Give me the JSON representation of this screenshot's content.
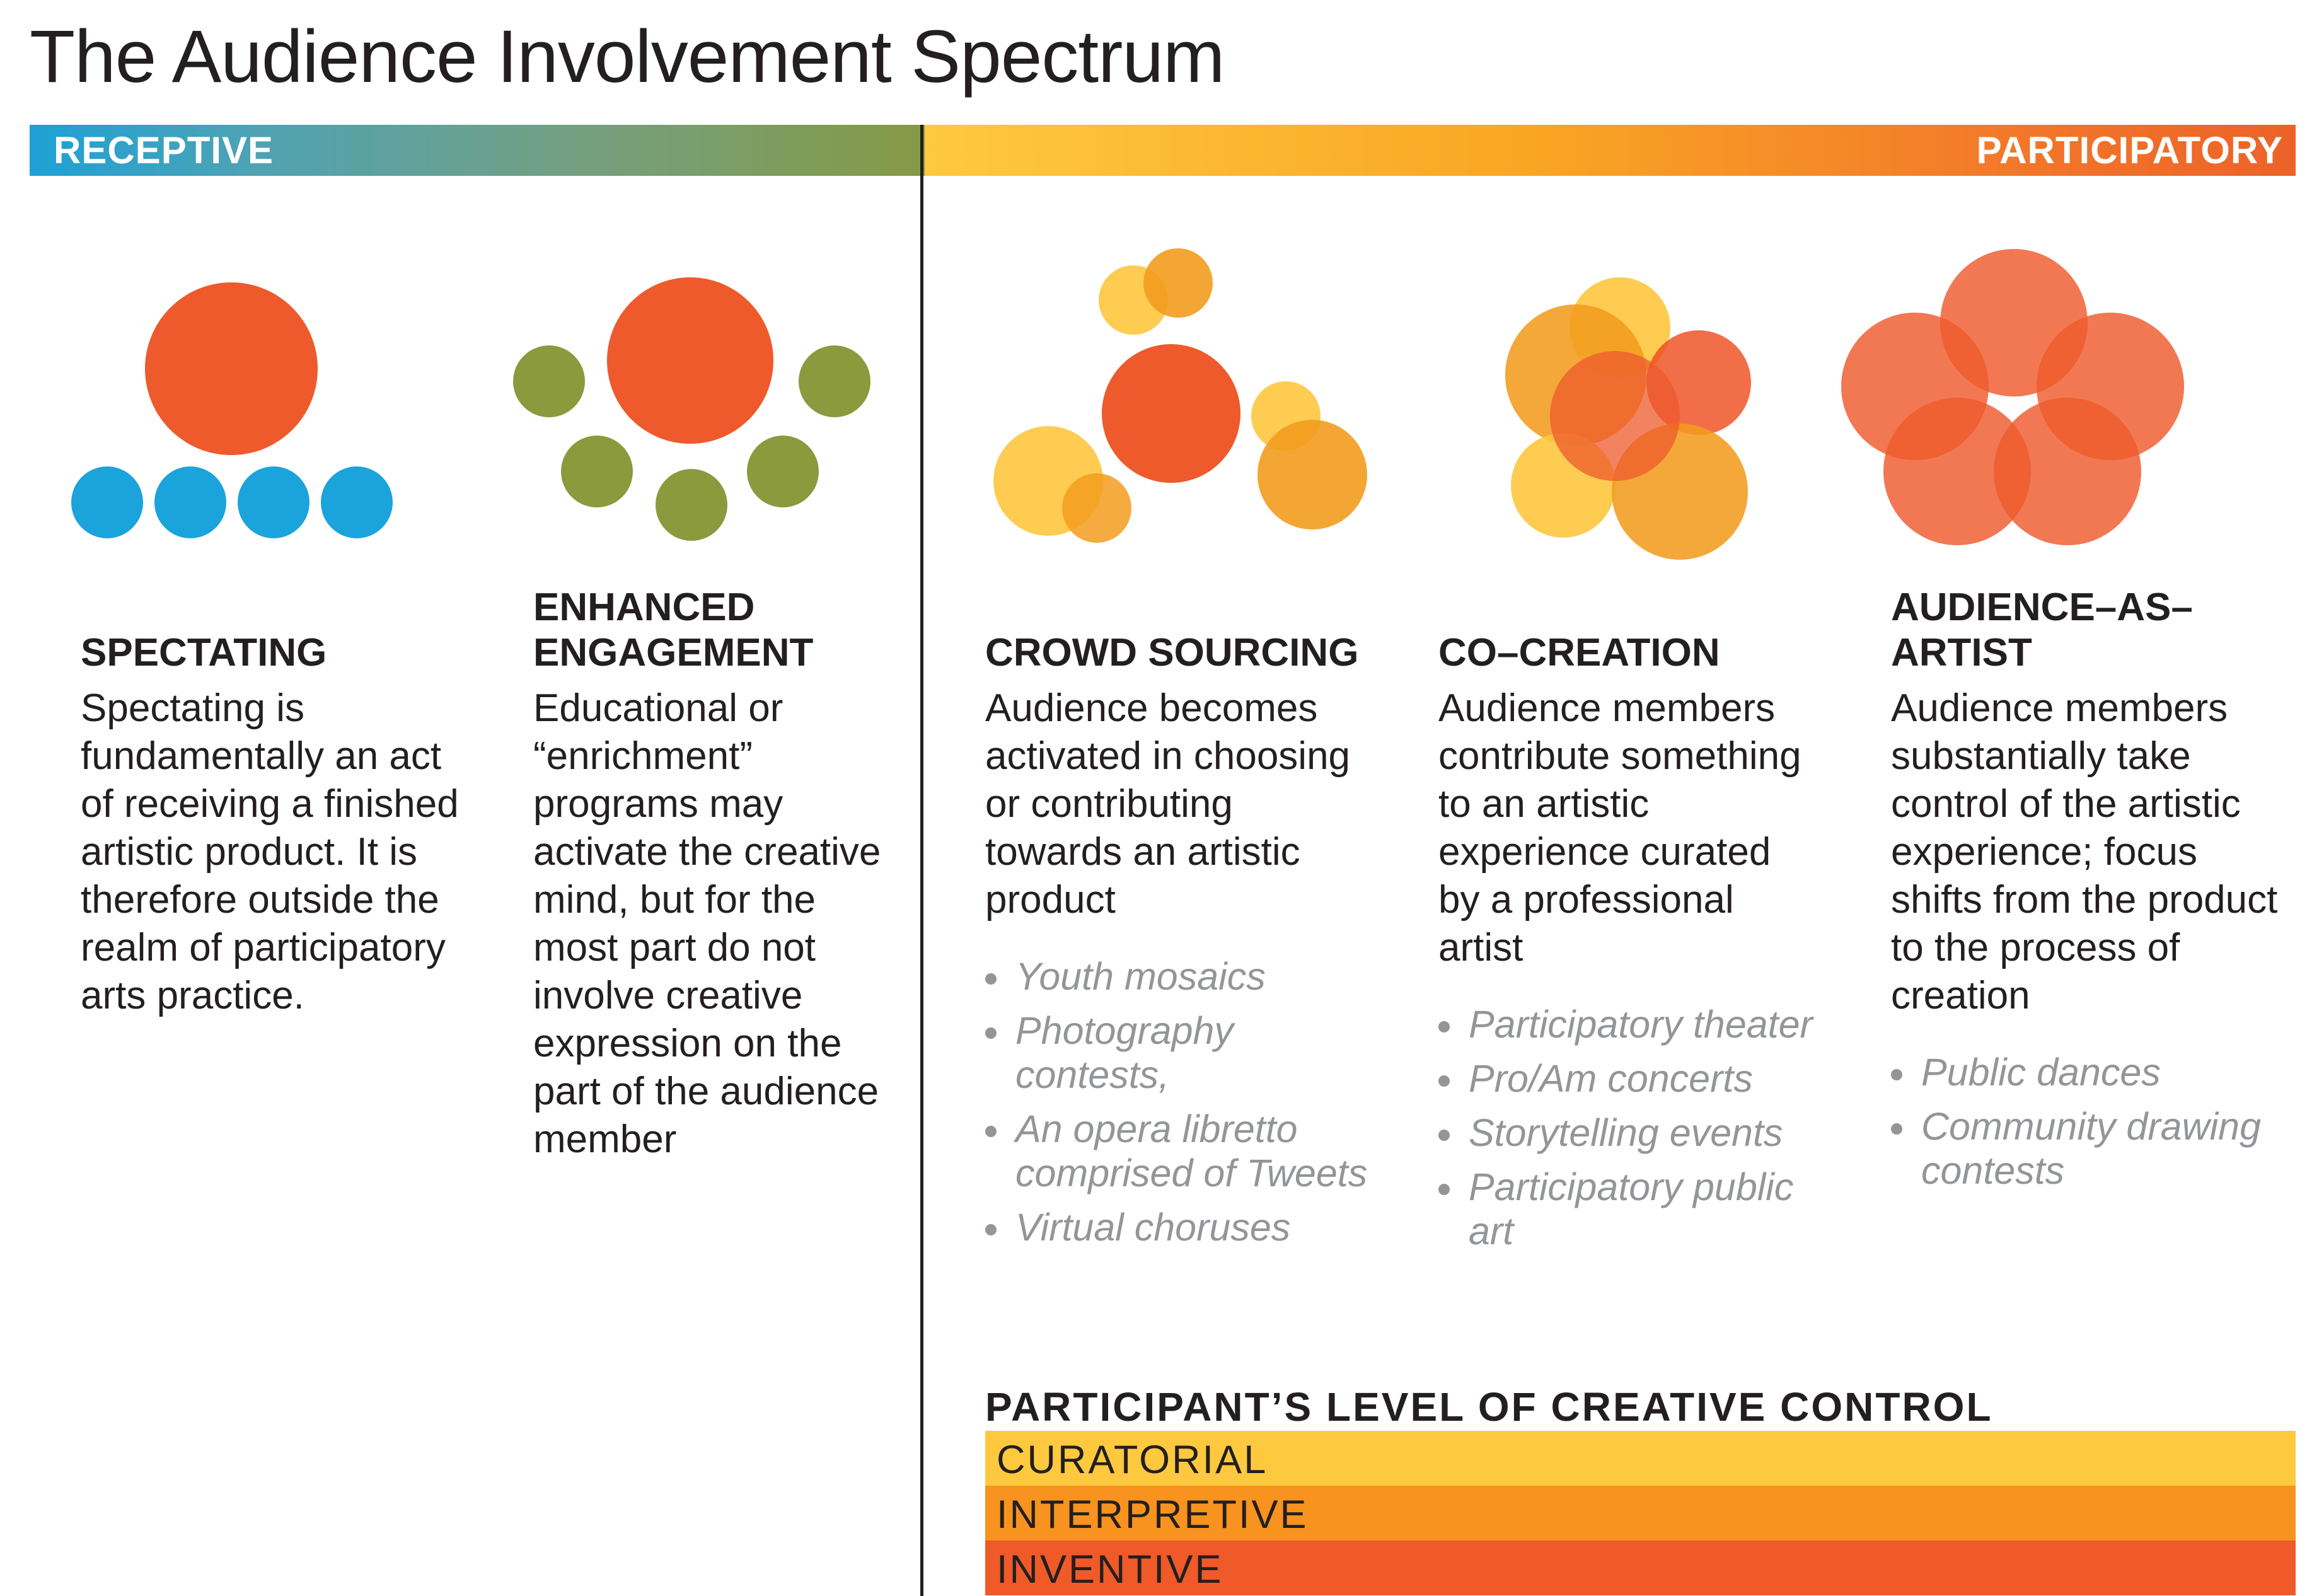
{
  "title": "The Audience Involvement Spectrum",
  "spectrum": {
    "left_label": "RECEPTIVE",
    "right_label": "PARTICIPATORY"
  },
  "columns": [
    {
      "heading": "SPECTATING",
      "description": "Spectating is fundamentally an act of receiving a finished artistic product. It is therefore outside the realm of participatory arts practice.",
      "examples": []
    },
    {
      "heading": "ENHANCED ENGAGEMENT",
      "description": "Educational or “enrichment” programs may activate the creative mind, but for the most part do not involve creative expression on the part of the audience member",
      "examples": []
    },
    {
      "heading": "CROWD SOURCING",
      "description": "Audience becomes activated in choosing or contributing towards an artistic product",
      "examples": [
        "Youth mosaics",
        "Photography contests,",
        "An opera libretto comprised of Tweets",
        "Virtual choruses"
      ]
    },
    {
      "heading": "CO–CREATION",
      "description": "Audience members contribute something to an artistic experience curated by a professional artist",
      "examples": [
        "Participatory theater",
        "Pro/Am concerts",
        "Storytelling events",
        "Participatory public art"
      ]
    },
    {
      "heading": "AUDIENCE–AS–ARTIST",
      "description": "Audience members substantially take control of the artistic experience; focus shifts from the product to the process of creation",
      "examples": [
        "Public dances",
        "Community drawing contests"
      ]
    }
  ],
  "creative_control": {
    "title": "PARTICIPANT’S LEVEL OF CREATIVE CONTROL",
    "levels": [
      {
        "label": "CURATORIAL",
        "color": "#fec93f"
      },
      {
        "label": "INTERPRETIVE",
        "color": "#f7931e"
      },
      {
        "label": "INVENTIVE",
        "color": "#ef5a28"
      }
    ]
  },
  "colors": {
    "receptive_blue": "#1ba3dc",
    "engagement_green": "#8a9a3d",
    "red_orange": "#ee5a2c",
    "orange": "#f39c1e",
    "yellow": "#fdc73e",
    "dark_red": "#c3150e"
  }
}
